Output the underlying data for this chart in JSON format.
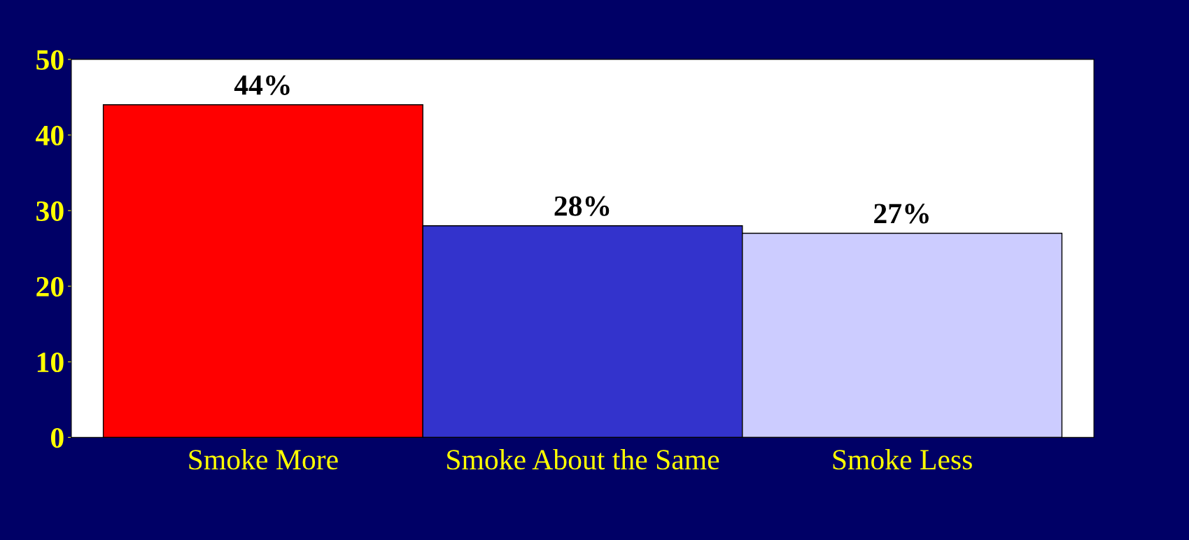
{
  "chart_data": {
    "type": "bar",
    "categories": [
      "Smoke More",
      "Smoke About the Same",
      "Smoke Less"
    ],
    "values": [
      44,
      28,
      27
    ],
    "colors": [
      "#ff0000",
      "#3333cc",
      "#ccccff"
    ],
    "value_labels": [
      "44%",
      "28%",
      "27%"
    ],
    "ylim": [
      0,
      50
    ],
    "yticks": [
      0,
      10,
      20,
      30,
      40,
      50
    ],
    "grid": false
  }
}
